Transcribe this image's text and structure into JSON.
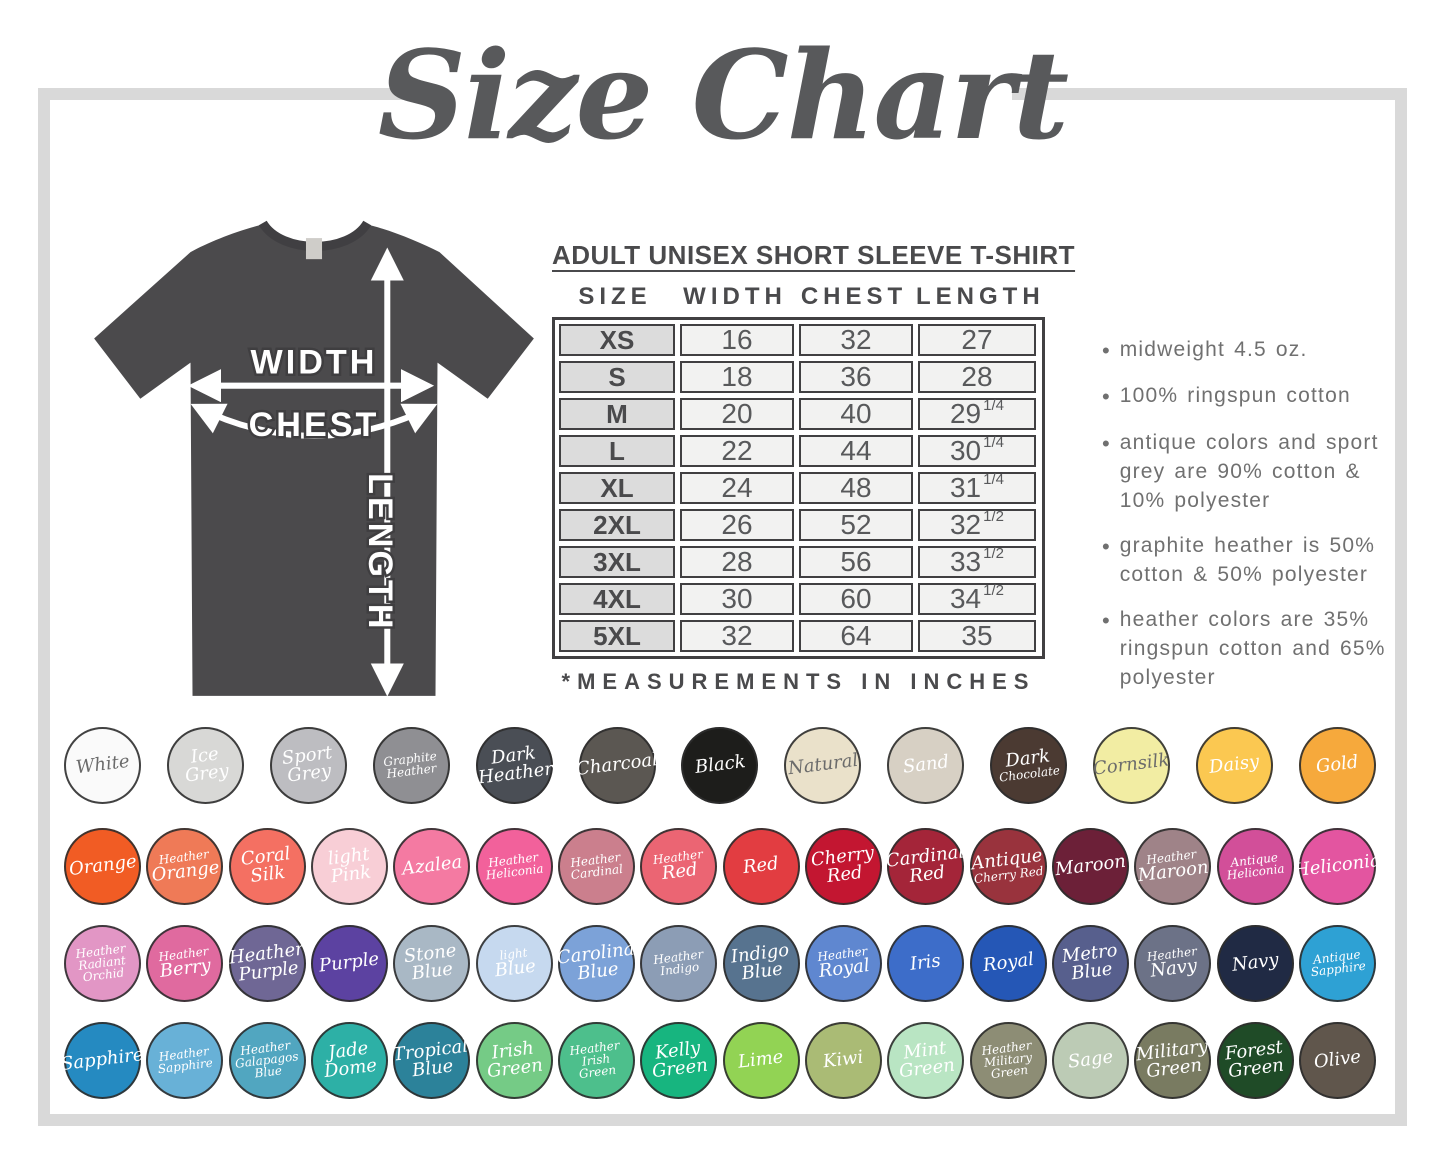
{
  "page": {
    "title": "Size Chart"
  },
  "colors": {
    "frame": "#d9d9d9",
    "title_text": "#58595b",
    "shirt_fill": "#4b4a4c",
    "table_border": "#414042",
    "size_col_bg": "#dcdcdc",
    "data_cell_bg": "#f2f2f1"
  },
  "shirt_diagram": {
    "labels": {
      "width": "WIDTH",
      "chest": "CHEST",
      "length": "LENGTH"
    }
  },
  "size_table": {
    "heading": "ADULT UNISEX SHORT SLEEVE T-SHIRT",
    "columns": [
      "SIZE",
      "WIDTH",
      "CHEST",
      "LENGTH"
    ],
    "rows": [
      {
        "size": "XS",
        "width": "16",
        "chest": "32",
        "length": "27",
        "length_frac": ""
      },
      {
        "size": "S",
        "width": "18",
        "chest": "36",
        "length": "28",
        "length_frac": ""
      },
      {
        "size": "M",
        "width": "20",
        "chest": "40",
        "length": "29",
        "length_frac": "1/4"
      },
      {
        "size": "L",
        "width": "22",
        "chest": "44",
        "length": "30",
        "length_frac": "1/4"
      },
      {
        "size": "XL",
        "width": "24",
        "chest": "48",
        "length": "31",
        "length_frac": "1/4"
      },
      {
        "size": "2XL",
        "width": "26",
        "chest": "52",
        "length": "32",
        "length_frac": "1/2"
      },
      {
        "size": "3XL",
        "width": "28",
        "chest": "56",
        "length": "33",
        "length_frac": "1/2"
      },
      {
        "size": "4XL",
        "width": "30",
        "chest": "60",
        "length": "34",
        "length_frac": "1/2"
      },
      {
        "size": "5XL",
        "width": "32",
        "chest": "64",
        "length": "35",
        "length_frac": ""
      }
    ],
    "footnote": "*MEASUREMENTS IN INCHES"
  },
  "notes": {
    "items": [
      "midweight 4.5 oz.",
      "100% ringspun cotton",
      "antique colors and sport grey are 90% cotton & 10% polyester",
      "graphite heather is 50% cotton & 50% polyester",
      "heather colors are 35% ringspun cotton and 65% polyester"
    ]
  },
  "swatches": {
    "rows": [
      [
        {
          "name": "White",
          "color": "#fafafa",
          "text_color": "dark",
          "lines": [
            "White"
          ]
        },
        {
          "name": "Ice Grey",
          "color": "#d8d8d6",
          "lines": [
            "Ice",
            "Grey"
          ]
        },
        {
          "name": "Sport Grey",
          "color": "#bdbdc1",
          "lines": [
            "Sport",
            "Grey"
          ]
        },
        {
          "name": "Graphite Heather",
          "color": "#8f8f93",
          "lines": [
            "Graphite",
            "Heather"
          ],
          "small": [
            0,
            1
          ]
        },
        {
          "name": "Dark Heather",
          "color": "#4a4e55",
          "lines": [
            "Dark",
            "Heather"
          ]
        },
        {
          "name": "Charcoal",
          "color": "#5b5752",
          "lines": [
            "Charcoal"
          ]
        },
        {
          "name": "Black",
          "color": "#1d1d1b",
          "lines": [
            "Black"
          ]
        },
        {
          "name": "Natural",
          "color": "#eae1ca",
          "text_color": "dark",
          "lines": [
            "Natural"
          ]
        },
        {
          "name": "Sand",
          "color": "#d7d0c4",
          "lines": [
            "Sand"
          ]
        },
        {
          "name": "Dark Chocolate",
          "color": "#4b3a32",
          "lines": [
            "Dark",
            "Chocolate"
          ],
          "small": [
            1
          ]
        },
        {
          "name": "Cornsilk",
          "color": "#f2eda3",
          "text_color": "dark",
          "lines": [
            "Cornsilk"
          ]
        },
        {
          "name": "Daisy",
          "color": "#fbc851",
          "lines": [
            "Daisy"
          ]
        },
        {
          "name": "Gold",
          "color": "#f6a93c",
          "lines": [
            "Gold"
          ]
        }
      ],
      [
        {
          "name": "Orange",
          "color": "#f15c24",
          "lines": [
            "Orange"
          ]
        },
        {
          "name": "Heather Orange",
          "color": "#ef7a57",
          "lines": [
            "Heather",
            "Orange"
          ],
          "small": [
            0
          ]
        },
        {
          "name": "Coral Silk",
          "color": "#f47062",
          "lines": [
            "Coral",
            "Silk"
          ]
        },
        {
          "name": "Light Pink",
          "color": "#f8ced6",
          "lines": [
            "light",
            "Pink"
          ]
        },
        {
          "name": "Azalea",
          "color": "#f47aa2",
          "lines": [
            "Azalea"
          ]
        },
        {
          "name": "Heather Heliconia",
          "color": "#f2619b",
          "lines": [
            "Heather",
            "Heliconia"
          ],
          "small": [
            0,
            1
          ]
        },
        {
          "name": "Heather Cardinal",
          "color": "#cb7f8d",
          "lines": [
            "Heather",
            "Cardinal"
          ],
          "small": [
            0,
            1
          ]
        },
        {
          "name": "Heather Red",
          "color": "#eb6573",
          "lines": [
            "Heather",
            "Red"
          ],
          "small": [
            0
          ]
        },
        {
          "name": "Red",
          "color": "#e23d41",
          "lines": [
            "Red"
          ]
        },
        {
          "name": "Cherry Red",
          "color": "#c31631",
          "lines": [
            "Cherry",
            "Red"
          ]
        },
        {
          "name": "Cardinal Red",
          "color": "#a42539",
          "lines": [
            "Cardinal",
            "Red"
          ]
        },
        {
          "name": "Antique Cherry Red",
          "color": "#99333d",
          "lines": [
            "Antique",
            "Cherry Red"
          ],
          "small": [
            1
          ]
        },
        {
          "name": "Maroon",
          "color": "#6c2038",
          "lines": [
            "Maroon"
          ]
        },
        {
          "name": "Heather Maroon",
          "color": "#9f8388",
          "lines": [
            "Heather",
            "Maroon"
          ],
          "small": [
            0
          ]
        },
        {
          "name": "Antique Heliconia",
          "color": "#d24f99",
          "lines": [
            "Antique",
            "Heliconia"
          ],
          "small": [
            0,
            1
          ]
        },
        {
          "name": "Heliconia",
          "color": "#e355a0",
          "lines": [
            "Heliconia"
          ]
        }
      ],
      [
        {
          "name": "Heather Radiant Orchid",
          "color": "#e296c5",
          "lines": [
            "Heather",
            "Radiant",
            "Orchid"
          ],
          "small": [
            0,
            1,
            2
          ]
        },
        {
          "name": "Heather Berry",
          "color": "#e06a9f",
          "lines": [
            "Heather",
            "Berry"
          ],
          "small": [
            0
          ]
        },
        {
          "name": "Heather Purple",
          "color": "#6f6795",
          "lines": [
            "Heather",
            "Purple"
          ]
        },
        {
          "name": "Purple",
          "color": "#5c42a1",
          "lines": [
            "Purple"
          ]
        },
        {
          "name": "Stone Blue",
          "color": "#a9b8c5",
          "lines": [
            "Stone",
            "Blue"
          ]
        },
        {
          "name": "Light Blue",
          "color": "#c6d9ef",
          "lines": [
            "light",
            "Blue"
          ],
          "small": [
            0
          ]
        },
        {
          "name": "Carolina Blue",
          "color": "#7ca2d8",
          "lines": [
            "Carolina",
            "Blue"
          ]
        },
        {
          "name": "Heather Indigo",
          "color": "#8c9db5",
          "lines": [
            "Heather",
            "Indigo"
          ],
          "small": [
            0,
            1
          ]
        },
        {
          "name": "Indigo Blue",
          "color": "#57738f",
          "lines": [
            "Indigo",
            "Blue"
          ]
        },
        {
          "name": "Heather Royal",
          "color": "#5f87d0",
          "lines": [
            "Heather",
            "Royal"
          ],
          "small": [
            0
          ]
        },
        {
          "name": "Iris",
          "color": "#3d6dc9",
          "lines": [
            "Iris"
          ]
        },
        {
          "name": "Royal",
          "color": "#2557b6",
          "lines": [
            "Royal"
          ]
        },
        {
          "name": "Metro Blue",
          "color": "#575f8d",
          "lines": [
            "Metro",
            "Blue"
          ]
        },
        {
          "name": "Heather Navy",
          "color": "#6c7287",
          "lines": [
            "Heather",
            "Navy"
          ],
          "small": [
            0
          ]
        },
        {
          "name": "Navy",
          "color": "#202a44",
          "lines": [
            "Navy"
          ]
        },
        {
          "name": "Antique Sapphire",
          "color": "#2ea1d4",
          "lines": [
            "Antique",
            "Sapphire"
          ],
          "small": [
            0,
            1
          ]
        }
      ],
      [
        {
          "name": "Sapphire",
          "color": "#258ac1",
          "lines": [
            "Sapphire"
          ]
        },
        {
          "name": "Heather Sapphire",
          "color": "#68b1d7",
          "lines": [
            "Heather",
            "Sapphire"
          ],
          "small": [
            0,
            1
          ]
        },
        {
          "name": "Heather Galapagos Blue",
          "color": "#51a6c0",
          "lines": [
            "Heather",
            "Galapagos",
            "Blue"
          ],
          "small": [
            0,
            1,
            2
          ]
        },
        {
          "name": "Jade Dome",
          "color": "#2db0a6",
          "lines": [
            "Jade",
            "Dome"
          ]
        },
        {
          "name": "Tropical Blue",
          "color": "#2c829a",
          "lines": [
            "Tropical",
            "Blue"
          ]
        },
        {
          "name": "Irish Green",
          "color": "#75cb86",
          "lines": [
            "Irish",
            "Green"
          ]
        },
        {
          "name": "Heather Irish Green",
          "color": "#4dbf8c",
          "lines": [
            "Heather",
            "Irish",
            "Green"
          ],
          "small": [
            0,
            1,
            2
          ]
        },
        {
          "name": "Kelly Green",
          "color": "#17b57f",
          "lines": [
            "Kelly",
            "Green"
          ]
        },
        {
          "name": "Lime",
          "color": "#92d354",
          "lines": [
            "Lime"
          ]
        },
        {
          "name": "Kiwi",
          "color": "#aabb75",
          "lines": [
            "Kiwi"
          ]
        },
        {
          "name": "Mint Green",
          "color": "#b9e5c3",
          "lines": [
            "Mint",
            "Green"
          ]
        },
        {
          "name": "Heather Military Green",
          "color": "#8d8d75",
          "lines": [
            "Heather",
            "Military",
            "Green"
          ],
          "small": [
            0,
            1,
            2
          ]
        },
        {
          "name": "Sage",
          "color": "#bccbb5",
          "lines": [
            "Sage"
          ]
        },
        {
          "name": "Military Green",
          "color": "#797b61",
          "lines": [
            "Military",
            "Green"
          ]
        },
        {
          "name": "Forest Green",
          "color": "#1f4b27",
          "lines": [
            "Forest",
            "Green"
          ]
        },
        {
          "name": "Olive",
          "color": "#60564c",
          "lines": [
            "Olive"
          ]
        }
      ]
    ]
  }
}
